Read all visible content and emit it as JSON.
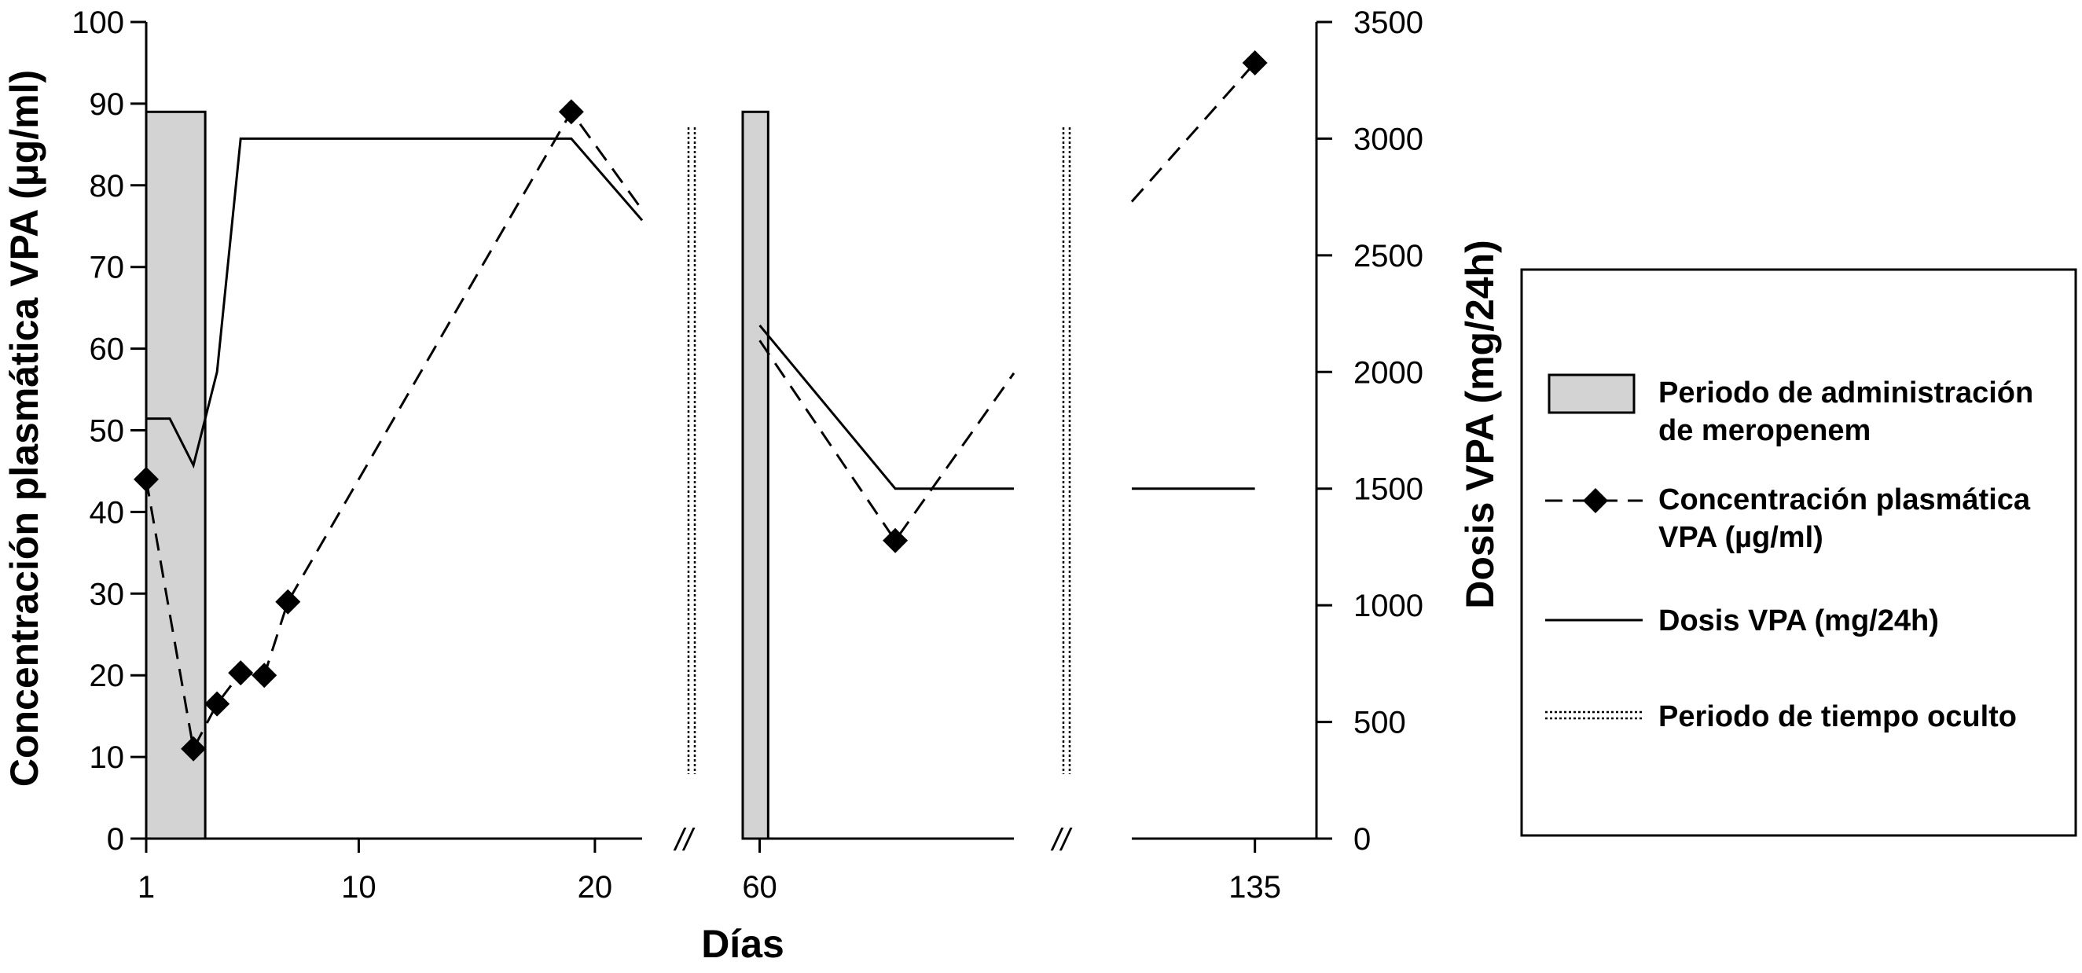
{
  "chart_data": {
    "type": "line",
    "xlabel": "Días",
    "ylabel_left": "Concentración plasmática VPA (µg/ml)",
    "ylabel_right": "Dosis VPA (mg/24h)",
    "y_left_lim": [
      0,
      100
    ],
    "y_left_ticks": [
      "0",
      "10",
      "20",
      "30",
      "40",
      "50",
      "60",
      "70",
      "80",
      "90",
      "100"
    ],
    "y_right_lim": [
      0,
      3500
    ],
    "y_right_ticks": [
      "0",
      "500",
      "1000",
      "1500",
      "2000",
      "2500",
      "3000",
      "3500"
    ],
    "x_ticks": [
      "1",
      "10",
      "20",
      "60",
      "135"
    ],
    "axis_break_marks": [
      "//",
      "//"
    ],
    "grid": false,
    "legend_position": "right",
    "series": [
      {
        "name": "Concentración plasmática VPA (µg/ml)",
        "axis": "left",
        "style": "dashed-diamond",
        "points": [
          [
            1,
            44
          ],
          [
            3,
            11
          ],
          [
            4,
            16.5
          ],
          [
            5,
            20.3
          ],
          [
            6,
            20
          ],
          [
            7,
            29
          ],
          [
            19,
            89
          ],
          [
            22,
            77
          ],
          [
            60,
            61
          ],
          [
            68,
            36.5
          ],
          [
            75,
            57
          ],
          [
            125,
            78
          ],
          [
            135,
            95
          ]
        ]
      },
      {
        "name": "Dosis VPA (mg/24h)",
        "axis": "right",
        "style": "solid",
        "points": [
          [
            1,
            1800
          ],
          [
            2,
            1800
          ],
          [
            3,
            1600
          ],
          [
            4,
            2000
          ],
          [
            5,
            3000
          ],
          [
            19,
            3000
          ],
          [
            22,
            2650
          ],
          [
            60,
            2200
          ],
          [
            68,
            1500
          ],
          [
            75,
            1500
          ],
          [
            125,
            1500
          ],
          [
            135,
            1500
          ]
        ]
      }
    ],
    "shaded_periods": [
      {
        "name": "Periodo de administración de meropenem",
        "x_start": 1,
        "x_end": 3.5,
        "level": 89
      },
      {
        "name": "Periodo de administración de meropenem",
        "x_start": 59,
        "x_end": 60.5,
        "level": 89
      }
    ],
    "legend": [
      {
        "label": "Periodo de administración de meropenem",
        "symbol": "gray-box"
      },
      {
        "label": "Concentración plasmática VPA (µg/ml)",
        "symbol": "dashed-diamond"
      },
      {
        "label": "Dosis VPA (mg/24h)",
        "symbol": "solid-line"
      },
      {
        "label": "Periodo de tiempo oculto",
        "symbol": "double-dotted-line"
      }
    ]
  }
}
